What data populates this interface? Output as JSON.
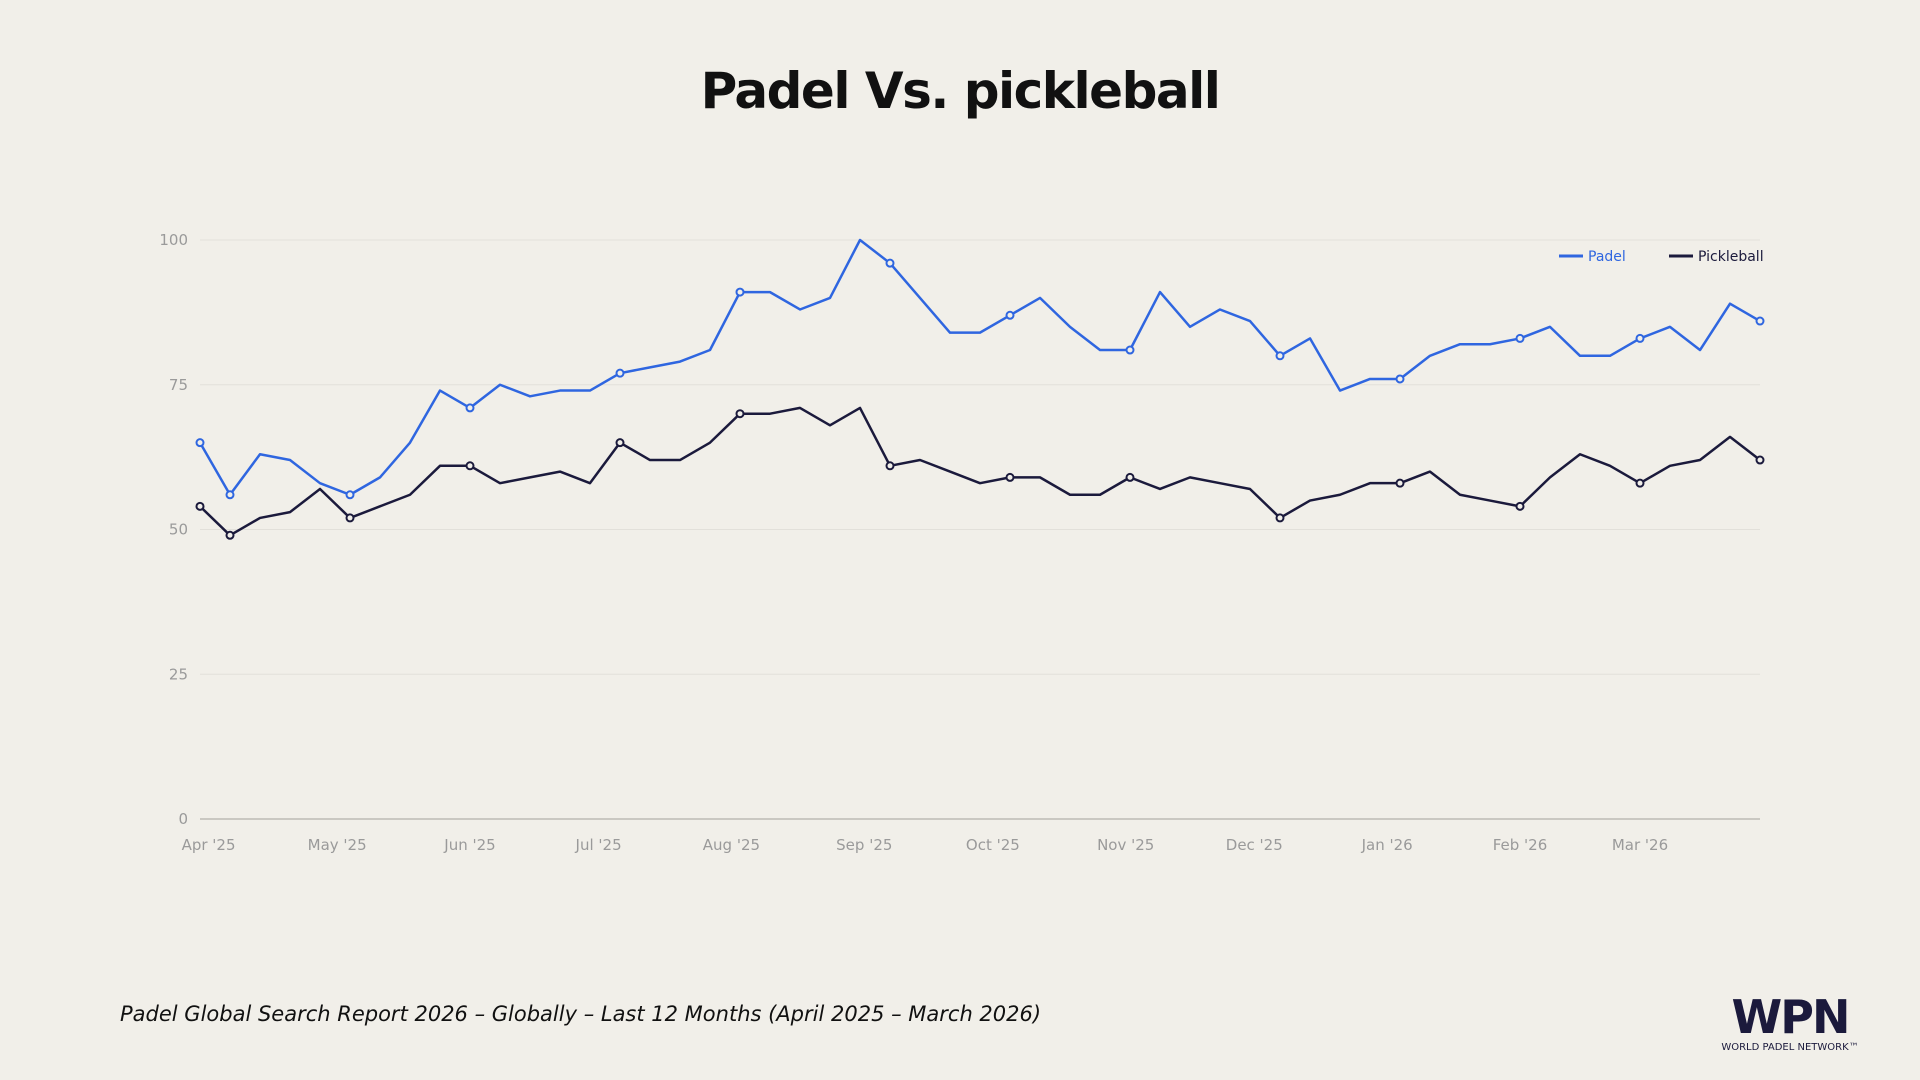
{
  "title": "Padel Vs. pickleball",
  "footnote": "Padel Global Search Report 2026 – Globally – Last 12 Months (April 2025 – March 2026)",
  "logo": {
    "text": "WPN",
    "subtitle": "WORLD PADEL NETWORK™"
  },
  "chart_data": {
    "type": "line",
    "title": "Padel Vs. pickleball",
    "xlabel": "",
    "ylabel": "",
    "ylim": [
      0,
      100
    ],
    "yticks": [
      0,
      25,
      50,
      75,
      100
    ],
    "grid": true,
    "legend": "top-right",
    "x_tick_labels": [
      {
        "date": "2025-04-01",
        "label": "Apr '25"
      },
      {
        "date": "2025-05-01",
        "label": "May '25"
      },
      {
        "date": "2025-06-01",
        "label": "Jun '25"
      },
      {
        "date": "2025-07-01",
        "label": "Jul '25"
      },
      {
        "date": "2025-08-01",
        "label": "Aug '25"
      },
      {
        "date": "2025-09-01",
        "label": "Sep '25"
      },
      {
        "date": "2025-10-01",
        "label": "Oct '25"
      },
      {
        "date": "2025-11-01",
        "label": "Nov '25"
      },
      {
        "date": "2025-12-01",
        "label": "Dec '25"
      },
      {
        "date": "2026-01-01",
        "label": "Jan '26"
      },
      {
        "date": "2026-02-01",
        "label": "Feb '26"
      },
      {
        "date": "2026-03-01",
        "label": "Mar '26"
      }
    ],
    "x": [
      "2025-03-30",
      "2025-04-06",
      "2025-04-13",
      "2025-04-20",
      "2025-04-27",
      "2025-05-04",
      "2025-05-11",
      "2025-05-18",
      "2025-05-25",
      "2025-06-01",
      "2025-06-08",
      "2025-06-15",
      "2025-06-22",
      "2025-06-29",
      "2025-07-06",
      "2025-07-13",
      "2025-07-20",
      "2025-07-27",
      "2025-08-03",
      "2025-08-10",
      "2025-08-17",
      "2025-08-24",
      "2025-08-31",
      "2025-09-07",
      "2025-09-14",
      "2025-09-21",
      "2025-09-28",
      "2025-10-05",
      "2025-10-12",
      "2025-10-19",
      "2025-10-26",
      "2025-11-02",
      "2025-11-09",
      "2025-11-16",
      "2025-11-23",
      "2025-11-30",
      "2025-12-07",
      "2025-12-14",
      "2025-12-21",
      "2025-12-28",
      "2026-01-04",
      "2026-01-11",
      "2026-01-18",
      "2026-01-25",
      "2026-02-01",
      "2026-02-08",
      "2026-02-15",
      "2026-02-22",
      "2026-03-01",
      "2026-03-08",
      "2026-03-15",
      "2026-03-22",
      "2026-03-29"
    ],
    "series": [
      {
        "name": "Padel",
        "color": "#2f66e0",
        "values": [
          65,
          56,
          63,
          62,
          58,
          56,
          59,
          65,
          74,
          71,
          75,
          73,
          74,
          74,
          77,
          78,
          79,
          81,
          91,
          91,
          88,
          90,
          100,
          96,
          90,
          84,
          84,
          87,
          90,
          85,
          81,
          81,
          91,
          85,
          88,
          86,
          80,
          83,
          74,
          76,
          76,
          80,
          82,
          82,
          83,
          85,
          80,
          80,
          83,
          85,
          81,
          89,
          86
        ]
      },
      {
        "name": "Pickleball",
        "color": "#1b1a3c",
        "values": [
          54,
          49,
          52,
          53,
          57,
          52,
          54,
          56,
          61,
          61,
          58,
          59,
          60,
          58,
          65,
          62,
          62,
          65,
          70,
          70,
          71,
          68,
          71,
          61,
          62,
          60,
          58,
          59,
          59,
          56,
          56,
          59,
          57,
          59,
          58,
          57,
          52,
          55,
          56,
          58,
          58,
          60,
          56,
          55,
          54,
          59,
          63,
          61,
          58,
          61,
          62,
          66,
          62
        ]
      }
    ]
  }
}
